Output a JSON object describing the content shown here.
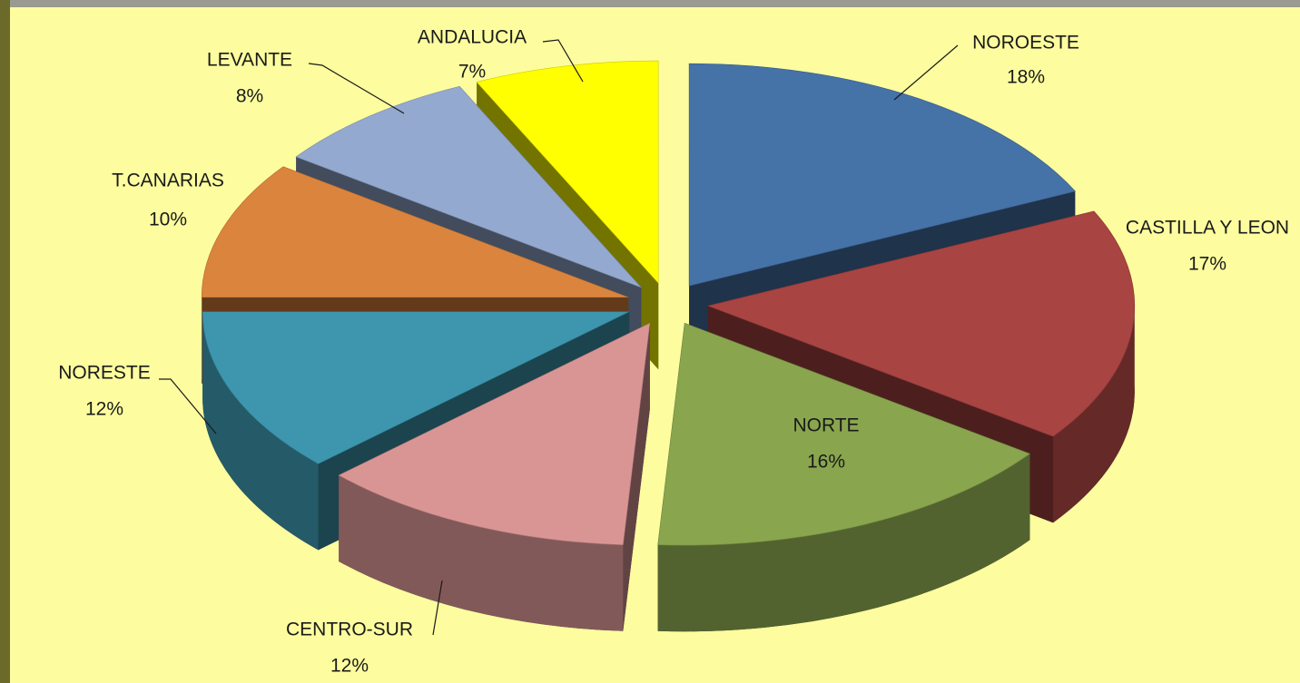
{
  "chart_data": {
    "type": "pie",
    "categories": [
      "NOROESTE",
      "CASTILLA Y LEON",
      "NORTE",
      "CENTRO-SUR",
      "NORESTE",
      "T.CANARIAS",
      "LEVANTE",
      "ANDALUCIA"
    ],
    "values": [
      18,
      17,
      16,
      12,
      12,
      10,
      8,
      7
    ],
    "value_labels": [
      "18%",
      "17%",
      "16%",
      "12%",
      "12%",
      "10%",
      "8%",
      "7%"
    ],
    "colors": [
      "#4572a7",
      "#a84442",
      "#89a54e",
      "#d99594",
      "#3d96ae",
      "#db843d",
      "#93a9cf",
      "#ffff00"
    ]
  }
}
